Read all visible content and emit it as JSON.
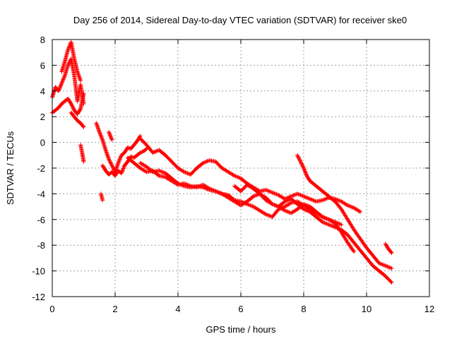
{
  "chart_data": {
    "type": "scatter",
    "title": "Day 256 of 2014, Sidereal Day-to-day VTEC variation (SDTVAR) for receiver ske0",
    "xlabel": "GPS time / hours",
    "ylabel": "SDTVAR / TECUs",
    "xlim": [
      0,
      12
    ],
    "ylim": [
      -12,
      8
    ],
    "xticks": [
      "0",
      "2",
      "4",
      "6",
      "8",
      "10",
      "12"
    ],
    "yticks": [
      "8",
      "6",
      "4",
      "2",
      "0",
      "-2",
      "-4",
      "-6",
      "-8",
      "-10",
      "-12"
    ],
    "grid": true,
    "marker": "+",
    "color": "#ff0000",
    "series": [
      {
        "name": "trace-1",
        "x": [
          0.0,
          0.1,
          0.2,
          0.3,
          0.4,
          0.5,
          0.6,
          0.7,
          0.8,
          0.9,
          1.0
        ],
        "y": [
          3.5,
          4.3,
          4.0,
          4.6,
          5.2,
          6.0,
          6.5,
          5.2,
          3.2,
          4.5,
          3.0
        ]
      },
      {
        "name": "trace-2",
        "x": [
          0.0,
          0.1,
          0.2,
          0.3,
          0.4,
          0.5,
          0.6,
          0.7,
          0.8,
          0.9,
          1.0
        ],
        "y": [
          2.3,
          2.5,
          2.7,
          3.0,
          3.2,
          3.4,
          3.0,
          2.5,
          2.2,
          2.6,
          3.8
        ]
      },
      {
        "name": "trace-3",
        "x": [
          0.3,
          0.4,
          0.5,
          0.6,
          0.7,
          0.8,
          0.9
        ],
        "y": [
          5.5,
          6.3,
          7.2,
          7.8,
          6.5,
          5.5,
          4.8
        ]
      },
      {
        "name": "trace-4",
        "x": [
          0.6,
          0.7,
          0.8,
          0.9,
          1.0
        ],
        "y": [
          2.3,
          2.0,
          1.7,
          1.5,
          1.2
        ]
      },
      {
        "name": "trace-5",
        "x": [
          0.9,
          0.95,
          1.0
        ],
        "y": [
          -0.2,
          -0.8,
          -1.5
        ]
      },
      {
        "name": "trace-6",
        "x": [
          1.4,
          1.5,
          1.6,
          1.7,
          1.8,
          1.9,
          2.0,
          2.1,
          2.2,
          2.3,
          2.4,
          2.5,
          2.6,
          2.7,
          2.8
        ],
        "y": [
          1.5,
          0.8,
          0.2,
          -0.6,
          -1.3,
          -1.8,
          -2.3,
          -1.6,
          -1.0,
          -0.8,
          -0.4,
          -0.5,
          -0.2,
          0.1,
          0.5
        ]
      },
      {
        "name": "trace-7",
        "x": [
          1.6,
          1.7,
          1.8,
          1.9,
          2.0,
          2.1,
          2.2,
          2.3,
          2.4,
          2.5,
          2.6,
          2.7,
          2.8,
          2.9,
          3.0
        ],
        "y": [
          -1.8,
          -2.2,
          -2.5,
          -2.3,
          -2.6,
          -2.2,
          -2.4,
          -1.8,
          -1.5,
          -1.1,
          -1.2,
          -1.0,
          -0.8,
          -0.7,
          -0.5
        ]
      },
      {
        "name": "trace-8",
        "x": [
          1.55,
          1.6
        ],
        "y": [
          -4.0,
          -4.5
        ]
      },
      {
        "name": "trace-9",
        "x": [
          1.8,
          1.85,
          1.9
        ],
        "y": [
          0.8,
          0.5,
          0.2
        ]
      },
      {
        "name": "trace-10",
        "x": [
          2.8,
          3.0,
          3.2,
          3.4,
          3.6,
          3.8,
          4.0,
          4.2,
          4.4,
          4.6,
          4.8,
          5.0,
          5.2,
          5.4,
          5.6,
          5.8,
          6.0,
          6.2,
          6.4,
          6.6,
          6.8,
          7.0,
          7.2,
          7.4,
          7.6,
          7.8,
          8.0,
          8.2,
          8.4,
          8.6,
          8.8,
          9.0,
          9.2,
          9.4,
          9.6,
          9.8
        ],
        "y": [
          0.3,
          -0.2,
          -0.8,
          -0.6,
          -1.0,
          -1.5,
          -2.0,
          -2.3,
          -2.5,
          -2.0,
          -1.6,
          -1.4,
          -1.5,
          -2.0,
          -2.3,
          -2.6,
          -2.8,
          -3.2,
          -3.5,
          -3.8,
          -3.7,
          -3.9,
          -4.1,
          -4.4,
          -4.2,
          -4.0,
          -4.2,
          -4.4,
          -4.6,
          -4.5,
          -4.3,
          -4.4,
          -4.6,
          -4.9,
          -5.1,
          -5.4
        ]
      },
      {
        "name": "trace-11",
        "x": [
          2.4,
          2.6,
          2.8,
          3.0,
          3.2,
          3.4,
          3.6,
          3.8,
          4.0,
          4.2,
          4.4,
          4.6,
          4.8,
          5.0,
          5.2,
          5.4,
          5.6,
          5.8,
          6.0,
          6.2,
          6.4,
          6.6,
          6.8,
          7.0,
          7.2,
          7.4,
          7.6,
          7.8,
          8.0,
          8.2,
          8.4,
          8.6,
          8.8,
          9.0,
          9.2,
          9.4,
          9.6
        ],
        "y": [
          -1.2,
          -1.6,
          -2.0,
          -2.3,
          -2.2,
          -2.6,
          -2.7,
          -3.0,
          -3.3,
          -3.2,
          -3.4,
          -3.5,
          -3.3,
          -3.6,
          -3.8,
          -4.0,
          -4.1,
          -4.5,
          -4.6,
          -4.8,
          -5.0,
          -5.3,
          -5.6,
          -5.8,
          -5.2,
          -5.0,
          -4.7,
          -4.6,
          -4.9,
          -5.2,
          -5.5,
          -5.8,
          -6.0,
          -6.3,
          -7.0,
          -7.8,
          -8.5
        ]
      },
      {
        "name": "trace-12",
        "x": [
          2.8,
          3.0,
          3.2,
          3.4,
          3.6,
          3.8,
          4.0,
          4.2,
          4.4,
          4.6,
          4.8,
          5.0,
          5.2,
          5.4,
          5.6,
          5.8,
          6.0,
          6.2,
          6.4,
          6.6,
          6.8,
          7.0,
          7.2,
          7.4,
          7.6,
          7.8,
          8.0,
          8.2,
          8.4,
          8.6,
          8.8,
          9.0,
          9.2
        ],
        "y": [
          -1.6,
          -1.9,
          -2.3,
          -2.2,
          -2.4,
          -2.8,
          -3.2,
          -3.4,
          -3.5,
          -3.4,
          -3.5,
          -3.7,
          -3.8,
          -4.0,
          -4.3,
          -4.6,
          -4.9,
          -4.6,
          -4.2,
          -4.0,
          -4.3,
          -4.8,
          -5.0,
          -5.3,
          -5.5,
          -5.2,
          -4.8,
          -5.0,
          -5.4,
          -5.8,
          -6.0,
          -6.2,
          -6.4
        ]
      },
      {
        "name": "trace-13",
        "x": [
          5.8,
          6.0,
          6.2,
          6.4,
          6.6,
          6.8,
          7.0,
          7.2,
          7.4,
          7.6,
          7.8,
          8.0,
          8.2,
          8.4,
          8.6,
          8.8,
          9.0,
          9.2,
          9.4,
          9.6,
          9.8,
          10.0,
          10.2,
          10.4,
          10.6,
          10.8
        ],
        "y": [
          -3.4,
          -3.8,
          -3.3,
          -3.6,
          -4.0,
          -4.5,
          -4.8,
          -5.0,
          -4.6,
          -4.4,
          -4.8,
          -5.2,
          -5.4,
          -5.8,
          -6.2,
          -6.4,
          -6.6,
          -6.8,
          -7.2,
          -7.8,
          -8.4,
          -9.0,
          -9.6,
          -10.0,
          -10.4,
          -10.9
        ]
      },
      {
        "name": "trace-14",
        "x": [
          7.8,
          7.9,
          8.0,
          8.1,
          8.2,
          8.4,
          8.6,
          8.8,
          9.0,
          9.2,
          9.4,
          9.6,
          9.8,
          10.0,
          10.2,
          10.4,
          10.6,
          10.8
        ],
        "y": [
          -1.0,
          -1.5,
          -2.0,
          -2.6,
          -3.0,
          -3.4,
          -3.8,
          -4.2,
          -4.6,
          -5.2,
          -6.0,
          -6.8,
          -7.5,
          -8.2,
          -8.8,
          -9.4,
          -9.6,
          -9.8
        ]
      },
      {
        "name": "trace-15",
        "x": [
          10.6,
          10.7,
          10.8
        ],
        "y": [
          -7.9,
          -8.3,
          -8.6
        ]
      }
    ]
  }
}
